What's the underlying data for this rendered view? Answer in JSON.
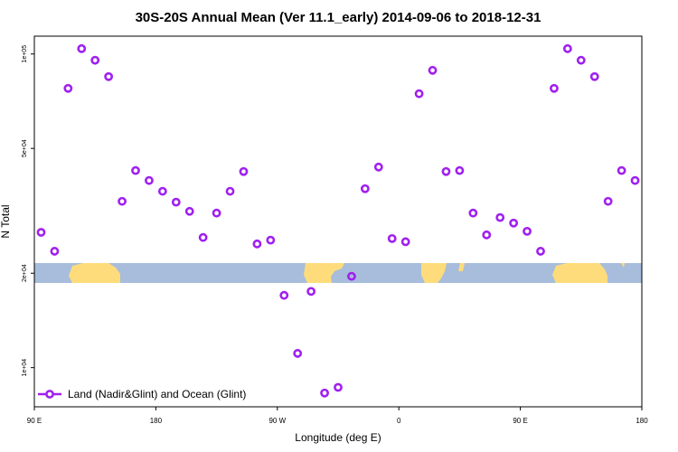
{
  "chart_data": {
    "type": "scatter",
    "title": "30S-20S Annual Mean (Ver 11.1_early)   2014-09-06 to 2018-12-31",
    "xlabel": "Longitude (deg E)",
    "ylabel": "N Total",
    "log_y": true,
    "xlim": [
      90,
      540
    ],
    "xticks": [
      {
        "value": 90,
        "label": "90 E"
      },
      {
        "value": 180,
        "label": "180"
      },
      {
        "value": 270,
        "label": "90 W"
      },
      {
        "value": 360,
        "label": "0"
      },
      {
        "value": 450,
        "label": "90 E"
      },
      {
        "value": 540,
        "label": "180"
      }
    ],
    "ylim": [
      7500,
      114000
    ],
    "yticks": [
      {
        "value": 10000,
        "label": "1e+04"
      },
      {
        "value": 20000,
        "label": "2e+04"
      },
      {
        "value": 50000,
        "label": "5e+04"
      },
      {
        "value": 100000,
        "label": "1e+05"
      }
    ],
    "legend": "lower left",
    "series": [
      {
        "name": "Land (Nadir&Glint) and Ocean (Glint)",
        "color": "#a020f0",
        "x": [
          95,
          105,
          115,
          125,
          135,
          145,
          155,
          165,
          175,
          185,
          195,
          205,
          215,
          225,
          235,
          245,
          255,
          265,
          275,
          285,
          295,
          305,
          315,
          325,
          335,
          345,
          355,
          365,
          375,
          385,
          395,
          405,
          415,
          425,
          435,
          445,
          455,
          465,
          475,
          485,
          495,
          505,
          515,
          525,
          535
        ],
        "values": [
          27000,
          23500,
          77700,
          104000,
          95500,
          84700,
          33900,
          42500,
          39500,
          36500,
          33700,
          31500,
          26000,
          31100,
          36500,
          42200,
          24800,
          25500,
          17000,
          11100,
          17500,
          8300,
          8650,
          19550,
          37200,
          43600,
          25800,
          25200,
          74700,
          88700,
          42200,
          42500,
          31100,
          26500,
          30100,
          28900,
          27200,
          23500,
          77700,
          104000,
          95500,
          84700,
          33900,
          42500,
          39500
        ]
      }
    ]
  }
}
